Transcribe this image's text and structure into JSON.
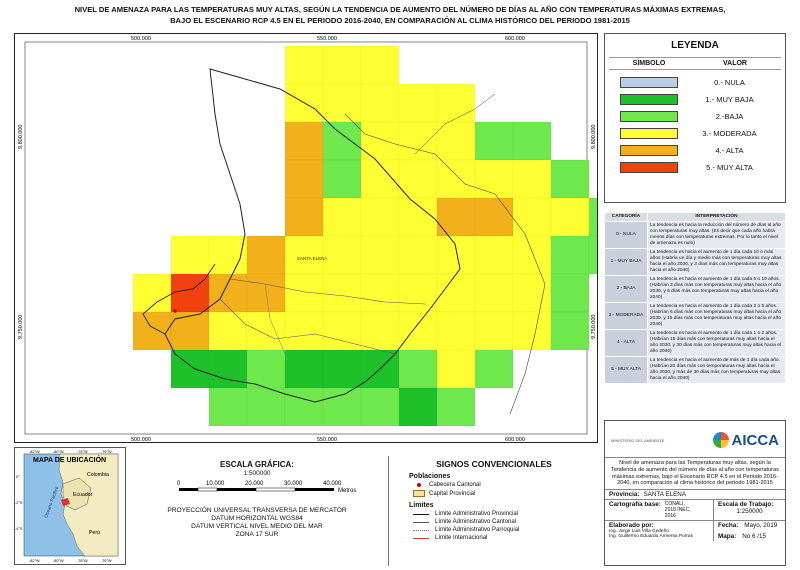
{
  "title": {
    "line1": "NIVEL DE AMENAZA PARA LAS TEMPERATURAS MUY ALTAS, SEGÚN LA TENDENCIA DE AUMENTO DEL NÚMERO DE DÍAS AL AÑO CON TEMPERATURAS MÁXIMAS EXTREMAS,",
    "line2": "BAJO EL ESCENARIO RCP 4.5 EN EL PERIODO 2016-2040, EN COMPARACIÓN AL CLIMA HISTÓRICO DEL PERIODO 1981-2015"
  },
  "map": {
    "x_ticks": [
      "500.000",
      "550.000",
      "600.000"
    ],
    "y_ticks": [
      "9.800.000",
      "9.750.000"
    ],
    "place_label": "SANTA ELENA",
    "colors": {
      "nula": "#b9cfe6",
      "muy_baja": "#1fc12a",
      "baja": "#6fe84e",
      "moderada": "#ffff33",
      "alta": "#f2b01b",
      "muy_alta": "#f2400f"
    }
  },
  "legend": {
    "title": "LEYENDA",
    "col_symbol": "SÍMBOLO",
    "col_value": "VALOR",
    "items": [
      {
        "label": "0.- NULA",
        "color": "#b9cfe6"
      },
      {
        "label": "1.- MUY BAJA",
        "color": "#1fc12a"
      },
      {
        "label": "2.-BAJA",
        "color": "#6fe84e"
      },
      {
        "label": "3.- MODERADA",
        "color": "#ffff33"
      },
      {
        "label": "4.- ALTA",
        "color": "#f2b01b"
      },
      {
        "label": "5.- MUY ALTA",
        "color": "#f2400f"
      }
    ]
  },
  "interpretation": {
    "col_cat": "CATEGORÍA",
    "col_interp": "INTERPRETACIÓN",
    "rows": [
      {
        "cat": "0 - NULA",
        "text": "La tendencia es hacia la reducción del número de días al año con temperaturas muy altas. (Es decir que cada año habrá menos días con temperaturas extremas. Por lo tanto el nivel de amenaza es nulo)"
      },
      {
        "cat": "1 - MUY BAJA",
        "text": "La tendencia es hacia el aumento de 1 día cada 10 o más años (Habría un día y medio más con temperaturas muy altas hacia el año 2030, y 3 días más con temperaturas muy altas hacia el año 2040)"
      },
      {
        "cat": "2 - BAJA",
        "text": "La tendencia es hacia el aumento de 1 día cada 5 o 10 años. (Habrían 3 días más con temperaturas muy altas hacia el año 2030, y 6 días más con temperaturas muy altas hacia el año 2040)"
      },
      {
        "cat": "3 - MODERADA",
        "text": "La tendencia es hacia el aumento de 1 día cada 2 o 5 años. (Habrían 6 días más con temperaturas muy altas hacia el año 2030, y 15 días más con temperaturas muy altas hacia el año 2040)"
      },
      {
        "cat": "4 - ALTA",
        "text": "La tendencia es hacia el aumento de 1 día cada 1 o 2 años. (Habrían 15 días más con temperaturas muy altas hacia el año 2030, y 30 días más con temperaturas muy altas hacia el año 2040)"
      },
      {
        "cat": "5 - MUY ALTA",
        "text": "La tendencia es hacia el aumento de más de 1 día cada año. (Habrían 20 días más con temperaturas muy altas hacia el año 2030, y más de 30 días más con temperaturas muy altas hacia el año 2040)"
      }
    ]
  },
  "location_map": {
    "title": "MAPA DE UBICACIÓN",
    "country_colombia": "Colombia",
    "country_ecuador": "Ecuador",
    "country_peru": "Perú",
    "ocean": "Oceano Pacifico",
    "top_ticks": [
      "-82°W",
      "-80°W",
      "-78°W",
      "-76°W"
    ],
    "bottom_ticks": [
      "-82°W",
      "-80°W",
      "-78°W",
      "-76°W"
    ],
    "lat_ticks": [
      "0°",
      "-2°S",
      "-4°S"
    ]
  },
  "scale": {
    "title": "ESCALA GRÁFICA:",
    "ratio": "1:500000",
    "ticks": [
      "0",
      "10.000",
      "20.000",
      "30.000",
      "40.000"
    ],
    "unit": "Metros",
    "proj1": "PROYECCIÓN UNIVERSAL TRANSVERSA DE MERCATOR",
    "proj2": "DATUM HORIZONTAL WGS84",
    "proj3": "DATUM VERTICAL NIVEL MEDIO DEL MAR",
    "proj4": "ZONA 17 SUR"
  },
  "signs": {
    "title": "SIGNOS CONVENCIONALES",
    "poblaciones": "Poblaciones",
    "cabecera": "Cabecera Cantonal",
    "capital": "Capital Provincial",
    "limites": "Límites",
    "lim_prov": "Límite Administrativo Provincial",
    "lim_cant": "Límite Administrativo Cantonal",
    "lim_parr": "Límite Administrativo Parroquial",
    "lim_int": "Límite Internacional"
  },
  "info": {
    "logo": "AICCA",
    "logo_left": "MINISTERIO DEL AMBIENTE",
    "description": "Nivel de amenaza para las Temperaturas muy altas, según la Tendencia de aumento del número de días al año con temperaturas máximas extremas, bajo el Escenario RCP 4.5 en el Periodo 2016-2040, en comparación al clima histórico del periodo 1981-2015",
    "provincia_label": "Provincia:",
    "provincia_value": "SANTA ELENA",
    "carto_label": "Cartografía base:",
    "carto_value": "CONALI, 2018 INEC, 2016",
    "escala_label": "Escala de Trabajo:",
    "escala_value": "1:250000",
    "elab_label": "Elaborado por:",
    "elab_value1": "Ing. Jorge Luis Villa Cedeño",
    "elab_value2": "Ing. Guillermo Eduardo Armenta Porras",
    "fecha_label": "Fecha:",
    "fecha_value": "Mayo, 2019",
    "mapa_label": "Mapa:",
    "mapa_value": "No 6 /15"
  }
}
